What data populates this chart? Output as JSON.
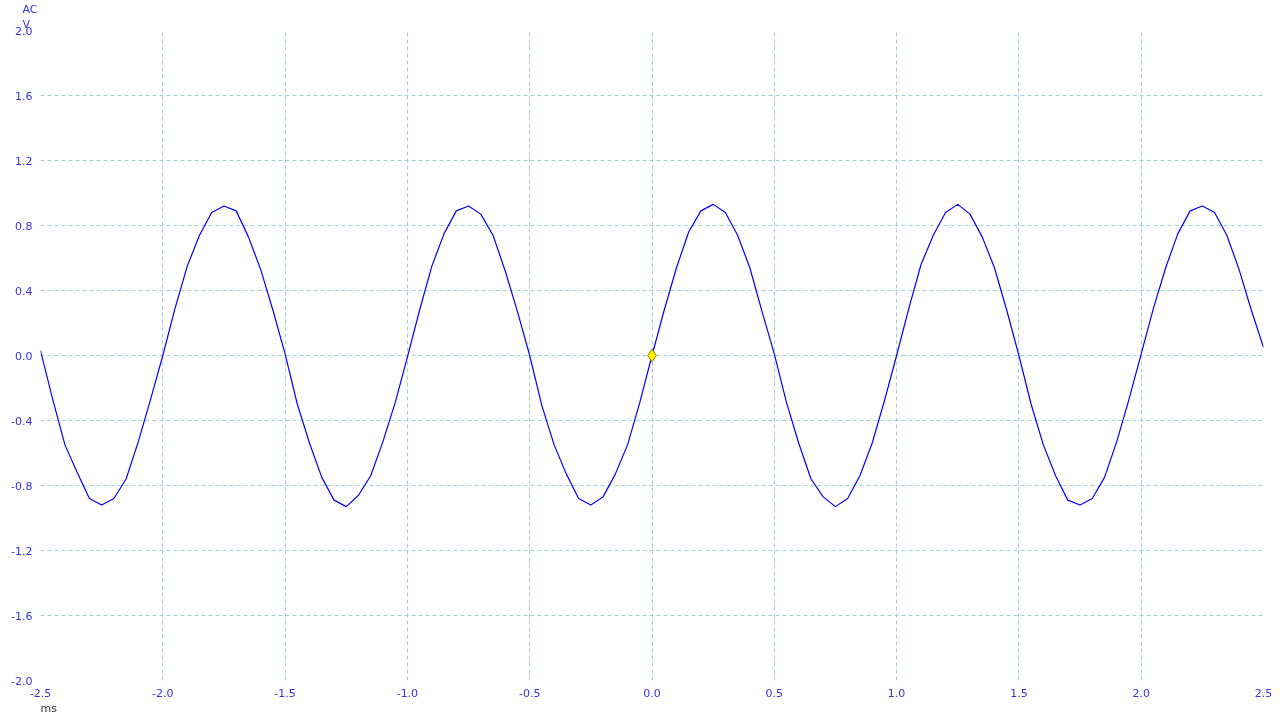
{
  "chart_data": {
    "type": "line",
    "xlabel": "ms",
    "ylabel": "V",
    "annotations": [
      "AC"
    ],
    "xlim": [
      -2.5,
      2.5
    ],
    "ylim": [
      -2.0,
      2.0
    ],
    "xticks": [
      {
        "value": -2.5,
        "label": "-2.5"
      },
      {
        "value": -2.0,
        "label": "-2.0"
      },
      {
        "value": -1.5,
        "label": "-1.5"
      },
      {
        "value": -1.0,
        "label": "-1.0"
      },
      {
        "value": -0.5,
        "label": "-0.5"
      },
      {
        "value": 0,
        "label": "0.0"
      },
      {
        "value": 0.5,
        "label": "0.5"
      },
      {
        "value": 1.0,
        "label": "1.0"
      },
      {
        "value": 1.5,
        "label": "1.5"
      },
      {
        "value": 2.0,
        "label": "2.0"
      },
      {
        "value": 2.5,
        "label": "2.5"
      }
    ],
    "yticks": [
      {
        "value": -2.0,
        "label": "-2.0"
      },
      {
        "value": -1.6,
        "label": "-1.6"
      },
      {
        "value": -1.2,
        "label": "-1.2"
      },
      {
        "value": -0.8,
        "label": "-0.8"
      },
      {
        "value": -0.4,
        "label": "-0.4"
      },
      {
        "value": 0,
        "label": "0.0"
      },
      {
        "value": 0.4,
        "label": "0.4"
      },
      {
        "value": 0.8,
        "label": "0.8"
      },
      {
        "value": 1.2,
        "label": "1.2"
      },
      {
        "value": 1.6,
        "label": "1.6"
      },
      {
        "value": 2.0,
        "label": "2.0"
      }
    ],
    "grid": true,
    "line_style": "solid",
    "x": [
      -2.5,
      -2.45,
      -2.4,
      -2.35,
      -2.3,
      -2.25,
      -2.2,
      -2.15,
      -2.1,
      -2.05,
      -2.0,
      -1.95,
      -1.9,
      -1.85,
      -1.8,
      -1.75,
      -1.7,
      -1.65,
      -1.6,
      -1.55,
      -1.5,
      -1.45,
      -1.4,
      -1.35,
      -1.3,
      -1.25,
      -1.2,
      -1.15,
      -1.1,
      -1.05,
      -1.0,
      -0.95,
      -0.9,
      -0.85,
      -0.8,
      -0.75,
      -0.7,
      -0.65,
      -0.6,
      -0.55,
      -0.5,
      -0.45,
      -0.4,
      -0.35,
      -0.3,
      -0.25,
      -0.2,
      -0.15,
      -0.1,
      -0.05,
      0.0,
      0.05,
      0.1,
      0.15,
      0.2,
      0.25,
      0.3,
      0.35,
      0.4,
      0.45,
      0.5,
      0.55,
      0.6,
      0.65,
      0.7,
      0.75,
      0.8,
      0.85,
      0.9,
      0.95,
      1.0,
      1.05,
      1.1,
      1.15,
      1.2,
      1.25,
      1.3,
      1.35,
      1.4,
      1.45,
      1.5,
      1.55,
      1.6,
      1.65,
      1.7,
      1.75,
      1.8,
      1.85,
      1.9,
      1.95,
      2.0,
      2.05,
      2.1,
      2.15,
      2.2,
      2.25,
      2.3,
      2.35,
      2.4,
      2.45,
      2.5
    ],
    "series": [
      {
        "color": "#0000ff",
        "values": [
          0.03,
          -0.27,
          -0.55,
          -0.72,
          -0.88,
          -0.92,
          -0.88,
          -0.76,
          -0.53,
          -0.27,
          0.0,
          0.29,
          0.55,
          0.74,
          0.88,
          0.92,
          0.89,
          0.73,
          0.53,
          0.28,
          0.01,
          -0.3,
          -0.54,
          -0.75,
          -0.89,
          -0.93,
          -0.86,
          -0.74,
          -0.53,
          -0.29,
          -0.01,
          0.28,
          0.55,
          0.75,
          0.89,
          0.92,
          0.87,
          0.74,
          0.52,
          0.27,
          0.0,
          -0.31,
          -0.55,
          -0.73,
          -0.88,
          -0.92,
          -0.87,
          -0.73,
          -0.55,
          -0.29,
          0.0,
          0.28,
          0.54,
          0.76,
          0.89,
          0.93,
          0.88,
          0.74,
          0.54,
          0.27,
          0.01,
          -0.29,
          -0.54,
          -0.76,
          -0.87,
          -0.93,
          -0.88,
          -0.74,
          -0.54,
          -0.28,
          0.0,
          0.29,
          0.56,
          0.74,
          0.88,
          0.93,
          0.87,
          0.73,
          0.54,
          0.28,
          0.0,
          -0.3,
          -0.55,
          -0.74,
          -0.89,
          -0.92,
          -0.88,
          -0.75,
          -0.53,
          -0.27,
          0.01,
          0.29,
          0.54,
          0.75,
          0.89,
          0.92,
          0.88,
          0.74,
          0.53,
          0.28,
          0.05
        ]
      },
      {
        "type": "scatter",
        "color": "#ffee00",
        "marker": "diamond",
        "x": [
          0.0
        ],
        "values": [
          0.0
        ]
      }
    ]
  }
}
